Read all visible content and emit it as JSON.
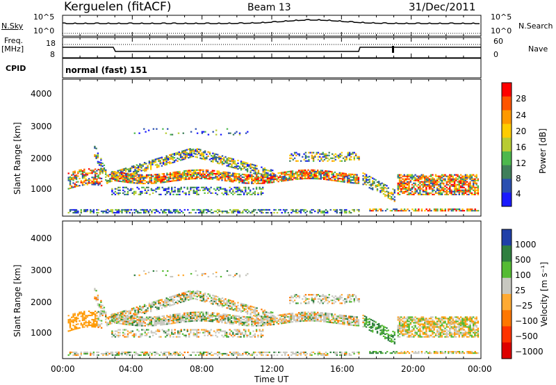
{
  "header": {
    "station": "Kerguelen (fitACF)",
    "beam": "Beam 13",
    "date": "31/Dec/2011"
  },
  "top_panels": {
    "nsky_label": "N.Sky",
    "nsky_ticks": [
      "10^5",
      "10^0"
    ],
    "nsearch_label": "N.Search",
    "nsearch_ticks": [
      "10^5",
      "10^0"
    ],
    "freq_label_line1": "Freq.",
    "freq_label_line2": "[MHz]",
    "freq_ticks": [
      "18",
      "8"
    ],
    "nave_label": "Nave",
    "nave_ticks": [
      "60",
      "0"
    ],
    "cpid_label": "CPID",
    "cpid_value": "normal (fast) 151"
  },
  "chart_data": [
    {
      "type": "heatmap",
      "name": "power",
      "ylabel": "Slant Range [km]",
      "yticks": [
        "4000",
        "3000",
        "2000",
        "1000"
      ],
      "ylim": [
        200,
        4600
      ],
      "xlim_hours": [
        0,
        24
      ],
      "colorbar_label": "Power [dB]",
      "colorbar_ticks": [
        "28",
        "24",
        "20",
        "16",
        "12",
        "8",
        "4"
      ],
      "colorbar_range": [
        0,
        32
      ],
      "colors": [
        "#1a1aff",
        "#2a4fb0",
        "#3f7f5a",
        "#4db84d",
        "#b8cc33",
        "#ffcc00",
        "#ff9900",
        "#ff5500",
        "#ff0000"
      ]
    },
    {
      "type": "heatmap",
      "name": "velocity",
      "ylabel": "Slant Range [km]",
      "yticks": [
        "4000",
        "3000",
        "2000",
        "1000"
      ],
      "ylim": [
        200,
        4600
      ],
      "xlim_hours": [
        0,
        24
      ],
      "colorbar_label": "Velocity [m s⁻¹]",
      "colorbar_ticks": [
        "1000",
        "500",
        "100",
        "25",
        "−25",
        "−100",
        "−500",
        "−1000"
      ],
      "colors": [
        "#1f3fa8",
        "#2f7f3f",
        "#55bb33",
        "#c8c8c0",
        "#ffaa33",
        "#ff7700",
        "#ff3300",
        "#dd0000"
      ]
    }
  ],
  "xaxis": {
    "ticks": [
      "00:00",
      "04:00",
      "08:00",
      "12:00",
      "16:00",
      "20:00",
      "00:00"
    ],
    "label": "Time UT"
  }
}
